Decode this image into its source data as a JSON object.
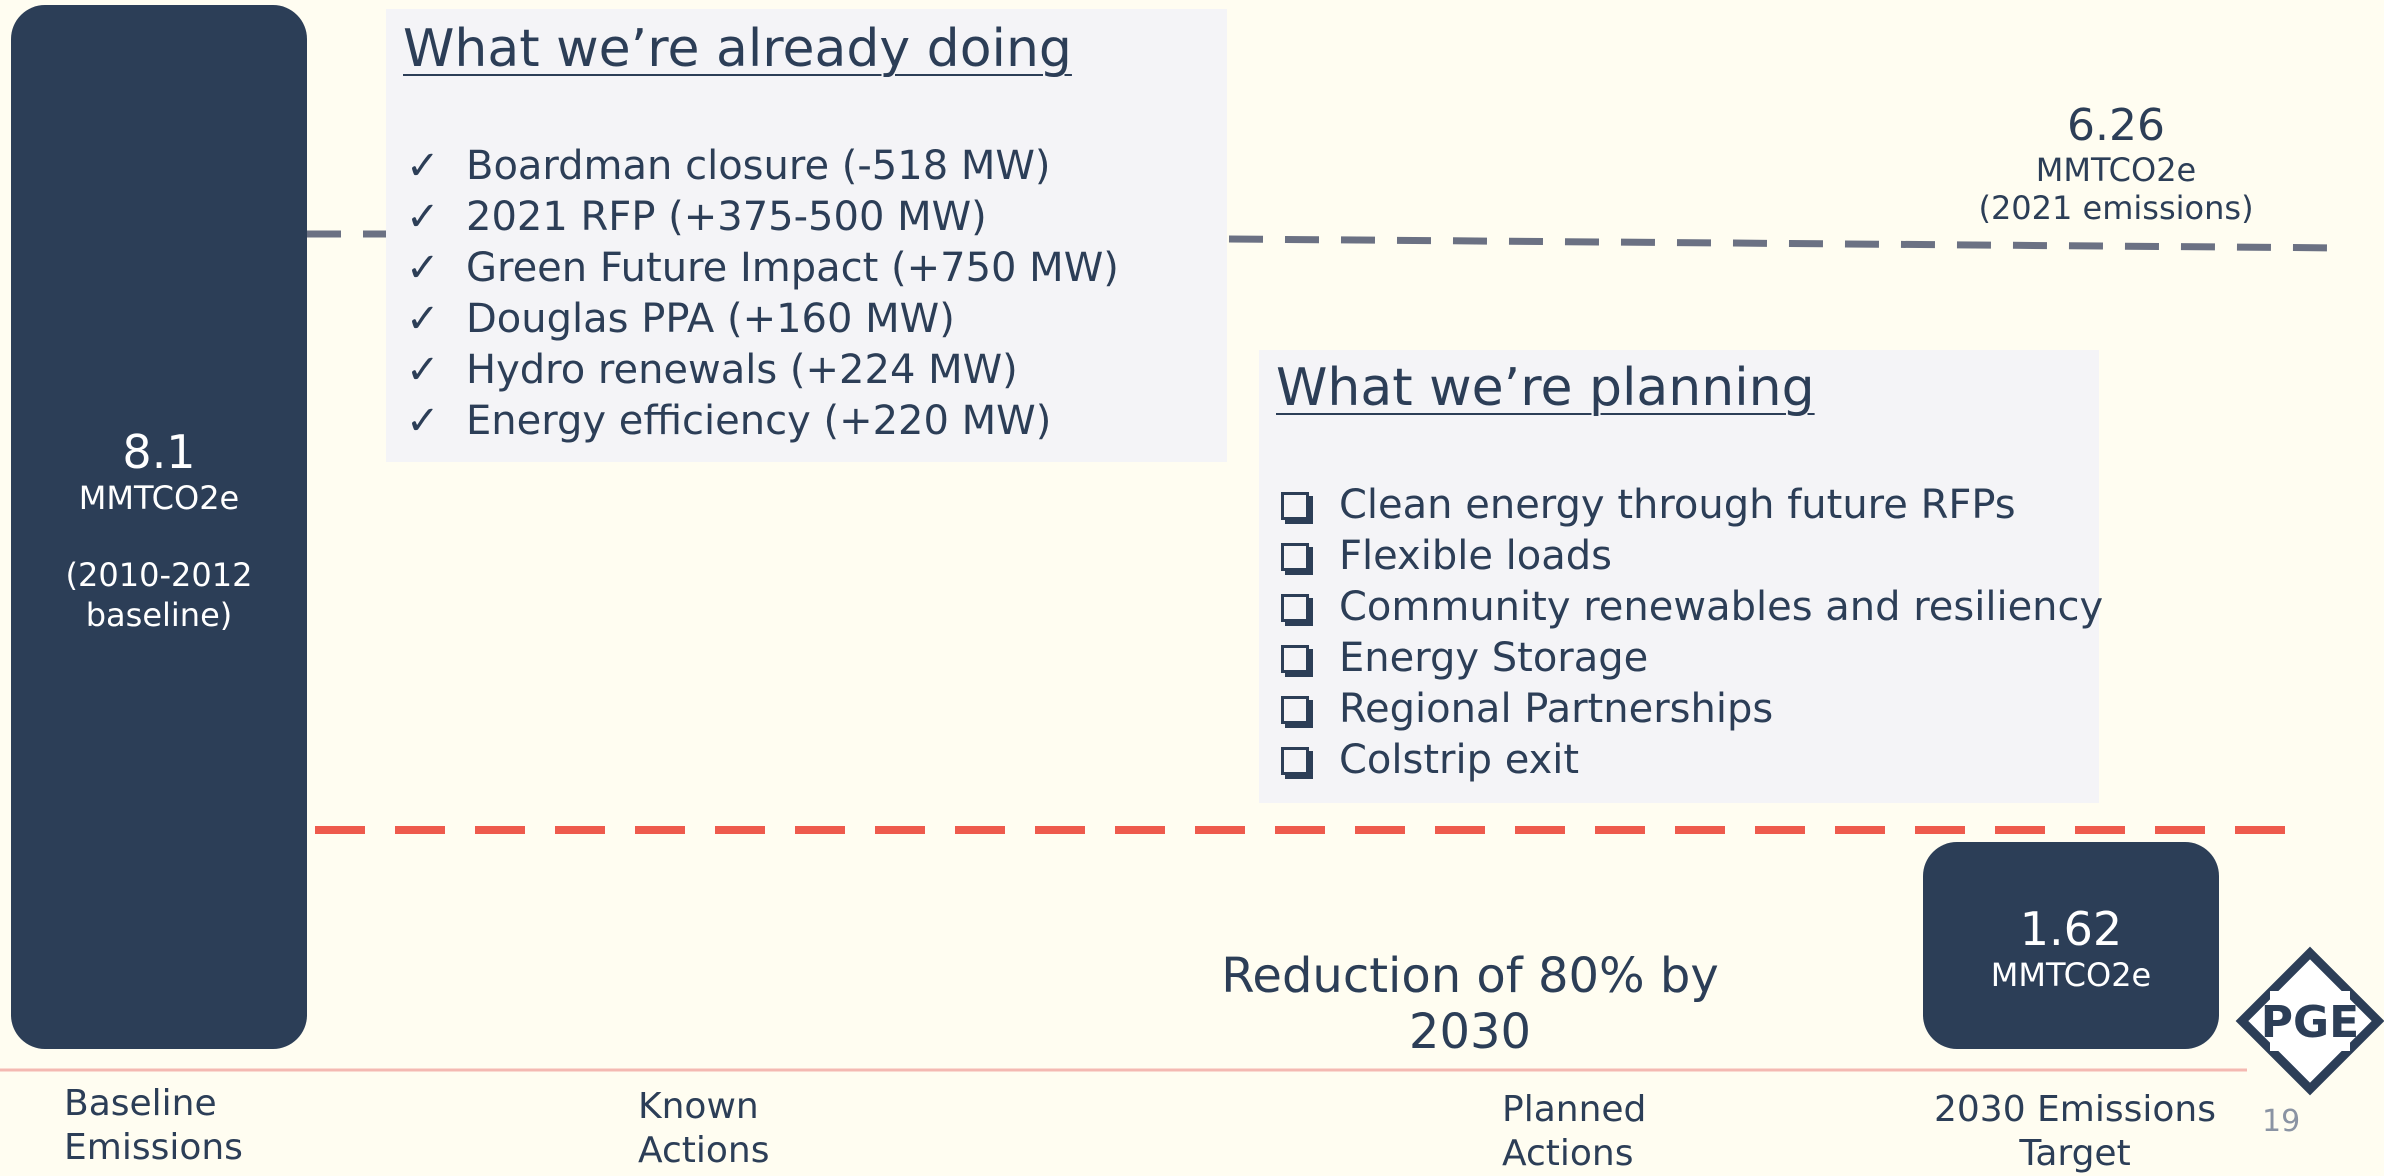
{
  "baseline": {
    "value": "8.1",
    "unit": "MMTCO2e",
    "note": "(2010-2012 baseline)"
  },
  "current": {
    "value": "6.26",
    "unit": "MMTCO2e",
    "note": "(2021 emissions)"
  },
  "target": {
    "value": "1.62",
    "unit": "MMTCO2e"
  },
  "doing": {
    "title": "What we’re already doing",
    "items": [
      "Boardman closure (-518 MW)",
      "2021 RFP (+375-500 MW)",
      "Green Future Impact (+750 MW)",
      "Douglas PPA (+160 MW)",
      "Hydro renewals (+224 MW)",
      "Energy efficiency (+220 MW)"
    ],
    "marker": "✓"
  },
  "planning": {
    "title": "What we’re planning",
    "items": [
      "Clean energy through future RFPs",
      "Flexible loads",
      "Community renewables and resiliency",
      "Energy Storage",
      "Regional Partnerships",
      "Colstrip exit"
    ]
  },
  "reduction": "Reduction of 80% by 2030",
  "x_labels": [
    "Baseline Emissions",
    "Known Actions",
    "Planned Actions",
    "2030 Emissions Target"
  ],
  "logo": "PGE",
  "page_number": "19"
}
